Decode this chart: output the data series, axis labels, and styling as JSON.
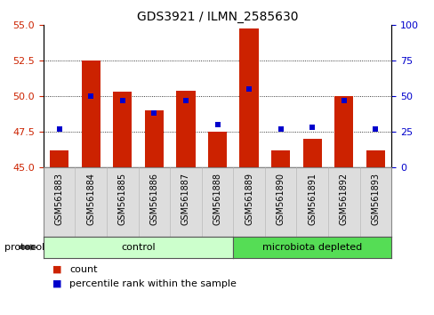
{
  "title": "GDS3921 / ILMN_2585630",
  "samples": [
    "GSM561883",
    "GSM561884",
    "GSM561885",
    "GSM561886",
    "GSM561887",
    "GSM561888",
    "GSM561889",
    "GSM561890",
    "GSM561891",
    "GSM561892",
    "GSM561893"
  ],
  "count": [
    46.2,
    52.5,
    50.3,
    49.0,
    50.4,
    47.5,
    54.8,
    46.2,
    47.0,
    50.0,
    46.2
  ],
  "percentile": [
    27,
    50,
    47,
    38,
    47,
    30,
    55,
    27,
    28,
    47,
    27
  ],
  "ylim_left": [
    45,
    55
  ],
  "ylim_right": [
    0,
    100
  ],
  "yticks_left": [
    45,
    47.5,
    50,
    52.5,
    55
  ],
  "yticks_right": [
    0,
    25,
    50,
    75,
    100
  ],
  "bar_color": "#cc2200",
  "dot_color": "#0000cc",
  "control_samples": 6,
  "control_label": "control",
  "treated_label": "microbiota depleted",
  "control_bg": "#ccffcc",
  "treated_bg": "#55dd55",
  "protocol_label": "protocol",
  "legend_count": "count",
  "legend_pct": "percentile rank within the sample",
  "grid_color": "#000000",
  "xticklabel_bg": "#dddddd",
  "plot_bg": "#ffffff",
  "fig_bg": "#ffffff"
}
